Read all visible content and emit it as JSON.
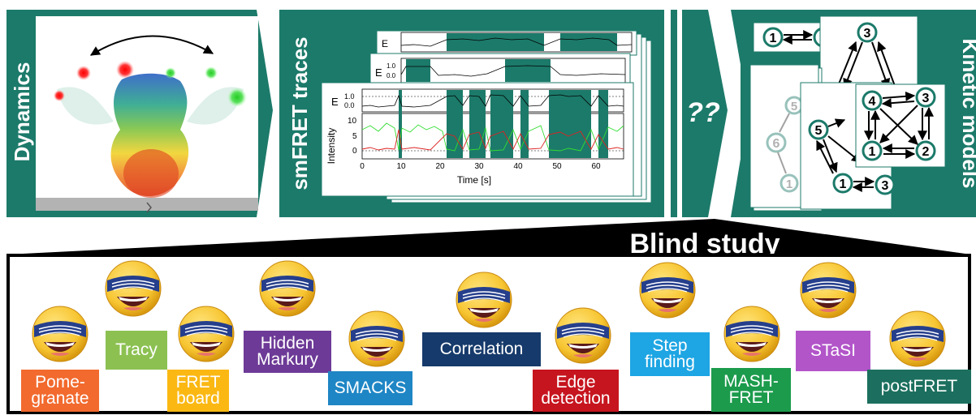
{
  "colors": {
    "teal": "#1c7a6a",
    "node_fill": "#ffffff",
    "study_black": "#000000"
  },
  "pipeline": {
    "stage1_label": "Dynamics",
    "stage2_label": "smFRET traces",
    "unknown_label": "??",
    "stage3_label": "Kinetic models"
  },
  "trace_plot": {
    "e_axis_label": "E",
    "e_ticks": [
      "1.0",
      "0.0"
    ],
    "intensity_axis_label": "Intensity",
    "intensity_ticks": [
      "10",
      "5",
      "0"
    ],
    "x_axis_label": "Time [s]",
    "x_ticks": [
      "0",
      "10",
      "20",
      "30",
      "40",
      "50",
      "60"
    ]
  },
  "kinetic_models": {
    "model_two_state": [
      "1",
      "2"
    ],
    "model_three_state": [
      "3",
      "1",
      "2"
    ],
    "model_four_state": [
      "4",
      "3",
      "1",
      "2"
    ],
    "model_five_state": [
      "5",
      "1",
      "3"
    ],
    "model_six_state_visible": [
      "5",
      "6",
      "1",
      "2"
    ]
  },
  "blind_study": {
    "title": "Blind study",
    "tools": [
      {
        "label": "Pome-\ngranate",
        "color": "#f26a2e"
      },
      {
        "label": "Tracy",
        "color": "#8cc152"
      },
      {
        "label": "FRET\nboard",
        "color": "#fbb813"
      },
      {
        "label": "Hidden\nMarkury",
        "color": "#6d3a97"
      },
      {
        "label": "SMACKS",
        "color": "#1f86c5"
      },
      {
        "label": "Correlation",
        "color": "#163a6b"
      },
      {
        "label": "Edge\ndetection",
        "color": "#c6151f"
      },
      {
        "label": "Step\nfinding",
        "color": "#1ea5e3"
      },
      {
        "label": "MASH-\nFRET",
        "color": "#1c9b4c"
      },
      {
        "label": "STaSI",
        "color": "#b255c9"
      },
      {
        "label": "postFRET",
        "color": "#1c6f5e"
      }
    ]
  }
}
